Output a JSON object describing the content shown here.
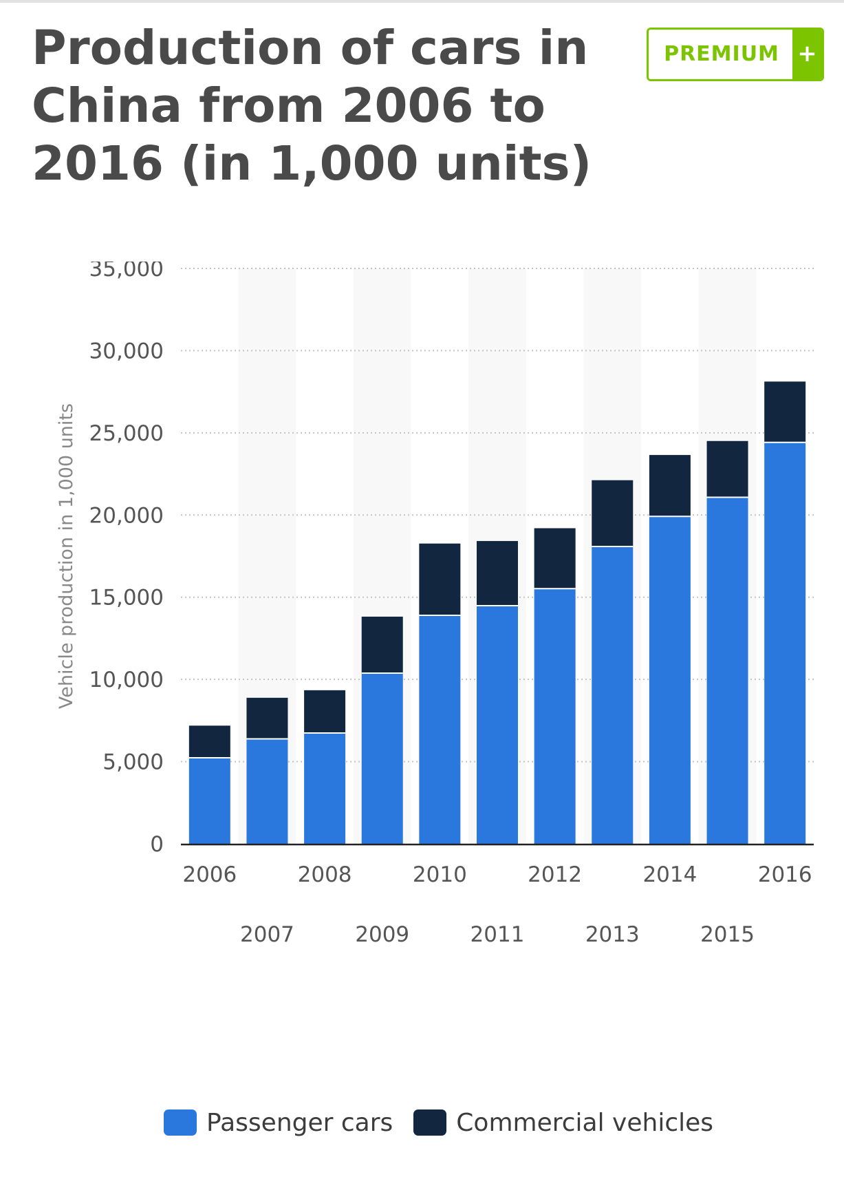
{
  "header": {
    "title": "Production of cars in China from 2006 to 2016 (in 1,000 units)",
    "premium_label": "PREMIUM",
    "premium_plus": "+"
  },
  "colors": {
    "passenger": "#2a78de",
    "commercial": "#12263f",
    "premium_green": "#7cc300"
  },
  "chart_data": {
    "type": "bar",
    "stacked": true,
    "title": "Production of cars in China from 2006 to 2016 (in 1,000 units)",
    "xlabel": "",
    "ylabel": "Vehicle production in 1,000 units",
    "categories": [
      "2006",
      "2007",
      "2008",
      "2009",
      "2010",
      "2011",
      "2012",
      "2013",
      "2014",
      "2015",
      "2016"
    ],
    "series": [
      {
        "name": "Passenger cars",
        "color": "#2a78de",
        "values": [
          5234,
          6382,
          6738,
          10384,
          13897,
          14485,
          15524,
          18085,
          19919,
          21079,
          24420
        ]
      },
      {
        "name": "Commercial vehicles",
        "color": "#12263f",
        "values": [
          1954,
          2501,
          2605,
          3434,
          4368,
          3933,
          3673,
          4032,
          3732,
          3423,
          3698
        ]
      }
    ],
    "ylim": [
      0,
      35000
    ],
    "yticks": [
      "0",
      "5,000",
      "10,000",
      "15,000",
      "20,000",
      "25,000",
      "30,000",
      "35,000"
    ],
    "ytick_values": [
      0,
      5000,
      10000,
      15000,
      20000,
      25000,
      30000,
      35000
    ],
    "grid": true,
    "legend": "bottom"
  }
}
